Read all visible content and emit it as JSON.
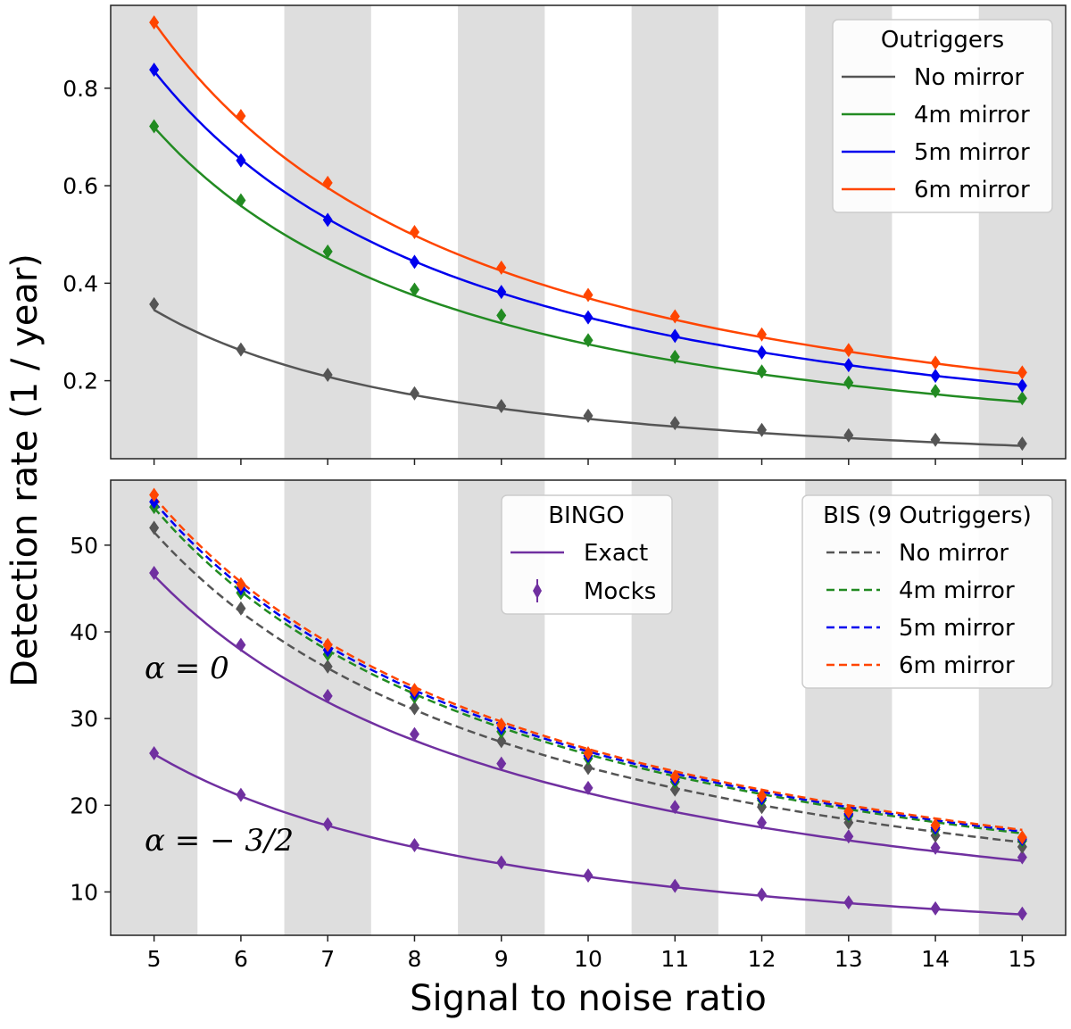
{
  "figure": {
    "xlabel": "Signal to noise ratio",
    "ylabel": "Detection rate (1 / year)"
  },
  "chart_data": [
    {
      "type": "line",
      "panel": "top",
      "x": [
        5,
        6,
        7,
        8,
        9,
        10,
        11,
        12,
        13,
        14,
        15
      ],
      "xlim": [
        4.5,
        15.5
      ],
      "ylim": [
        0.04,
        0.97
      ],
      "yticks": [
        0.2,
        0.4,
        0.6,
        0.8
      ],
      "ytick_labels": [
        "0.2",
        "0.4",
        "0.6",
        "0.8"
      ],
      "xticks": [
        5,
        6,
        7,
        8,
        9,
        10,
        11,
        12,
        13,
        14,
        15
      ],
      "xtick_labels": [
        "5",
        "6",
        "7",
        "8",
        "9",
        "10",
        "11",
        "12",
        "13",
        "14",
        "15"
      ],
      "shaded_bands": [
        [
          4.5,
          5.5
        ],
        [
          6.5,
          7.5
        ],
        [
          8.5,
          9.5
        ],
        [
          10.5,
          11.5
        ],
        [
          12.5,
          13.5
        ],
        [
          14.5,
          15.5
        ]
      ],
      "legend": {
        "title": "Outriggers",
        "position": "top-right"
      },
      "series": [
        {
          "name": "No mirror",
          "color": "#555555",
          "style": "solid",
          "curve_start": 0.345,
          "power": 1.5,
          "markers": [
            0.357,
            0.264,
            0.212,
            0.174,
            0.148,
            0.128,
            0.113,
            0.099,
            0.088,
            0.079,
            0.071
          ]
        },
        {
          "name": "4m mirror",
          "color": "#228b22",
          "style": "solid",
          "curve_start": 0.72,
          "power": 1.39,
          "markers": [
            0.722,
            0.57,
            0.465,
            0.387,
            0.334,
            0.283,
            0.249,
            0.219,
            0.196,
            0.179,
            0.164
          ]
        },
        {
          "name": "5m mirror",
          "color": "#0000ee",
          "style": "solid",
          "curve_start": 0.835,
          "power": 1.34,
          "markers": [
            0.838,
            0.652,
            0.53,
            0.444,
            0.382,
            0.33,
            0.292,
            0.258,
            0.232,
            0.21,
            0.19
          ]
        },
        {
          "name": "6m mirror",
          "color": "#ff4500",
          "style": "solid",
          "curve_start": 0.935,
          "power": 1.34,
          "markers": [
            0.935,
            0.743,
            0.606,
            0.505,
            0.432,
            0.376,
            0.332,
            0.295,
            0.263,
            0.237,
            0.217
          ]
        }
      ]
    },
    {
      "type": "line",
      "panel": "bottom",
      "x": [
        5,
        6,
        7,
        8,
        9,
        10,
        11,
        12,
        13,
        14,
        15
      ],
      "xlim": [
        4.5,
        15.5
      ],
      "ylim": [
        5,
        57.5
      ],
      "yticks": [
        10,
        20,
        30,
        40,
        50
      ],
      "ytick_labels": [
        "10",
        "20",
        "30",
        "40",
        "50"
      ],
      "xticks": [
        5,
        6,
        7,
        8,
        9,
        10,
        11,
        12,
        13,
        14,
        15
      ],
      "xtick_labels": [
        "5",
        "6",
        "7",
        "8",
        "9",
        "10",
        "11",
        "12",
        "13",
        "14",
        "15"
      ],
      "shaded_bands": [
        [
          4.5,
          5.5
        ],
        [
          6.5,
          7.5
        ],
        [
          8.5,
          9.5
        ],
        [
          10.5,
          11.5
        ],
        [
          12.5,
          13.5
        ],
        [
          14.5,
          15.5
        ]
      ],
      "annotations": [
        "α = 0",
        "α = − 3/2"
      ],
      "legend_bingo": {
        "title": "BINGO",
        "entries": [
          "Exact",
          "Mocks"
        ],
        "position": "top-center"
      },
      "legend_bis": {
        "title": "BIS (9 Outriggers)",
        "position": "top-right"
      },
      "series": [
        {
          "name": "Exact α = 0",
          "color": "#7030a0",
          "style": "solid",
          "curve_start": 46.5,
          "power": 1.12,
          "markers": [
            46.8,
            38.5,
            32.6,
            28.2,
            24.8,
            22.0,
            19.8,
            18.0,
            16.4,
            15.1,
            14.0
          ]
        },
        {
          "name": "Exact α = −3/2",
          "color": "#7030a0",
          "style": "solid",
          "curve_start": 25.9,
          "power": 1.14,
          "markers": [
            26.0,
            21.2,
            17.8,
            15.4,
            13.4,
            11.9,
            10.7,
            9.7,
            8.8,
            8.1,
            7.5
          ]
        },
        {
          "name": "No mirror",
          "color": "#555555",
          "style": "dashed",
          "curve_start": 51.5,
          "power": 1.08,
          "markers": [
            52.0,
            42.7,
            36.0,
            31.2,
            27.4,
            24.3,
            21.8,
            19.8,
            18.0,
            16.5,
            15.2
          ]
        },
        {
          "name": "4m mirror",
          "color": "#228b22",
          "style": "dashed",
          "curve_start": 54.3,
          "power": 1.07,
          "markers": [
            54.4,
            44.5,
            37.4,
            32.5,
            28.5,
            25.4,
            22.7,
            20.6,
            18.8,
            17.2,
            15.9
          ]
        },
        {
          "name": "5m mirror",
          "color": "#0000ee",
          "style": "dashed",
          "curve_start": 55.0,
          "power": 1.07,
          "markers": [
            55.0,
            45.0,
            37.9,
            32.9,
            28.9,
            25.7,
            23.0,
            20.8,
            19.0,
            17.4,
            16.1
          ]
        },
        {
          "name": "6m mirror",
          "color": "#ff4500",
          "style": "dashed",
          "curve_start": 55.6,
          "power": 1.07,
          "markers": [
            55.8,
            45.5,
            38.5,
            33.3,
            29.3,
            26.0,
            23.3,
            21.1,
            19.3,
            17.7,
            16.3
          ]
        }
      ]
    }
  ]
}
